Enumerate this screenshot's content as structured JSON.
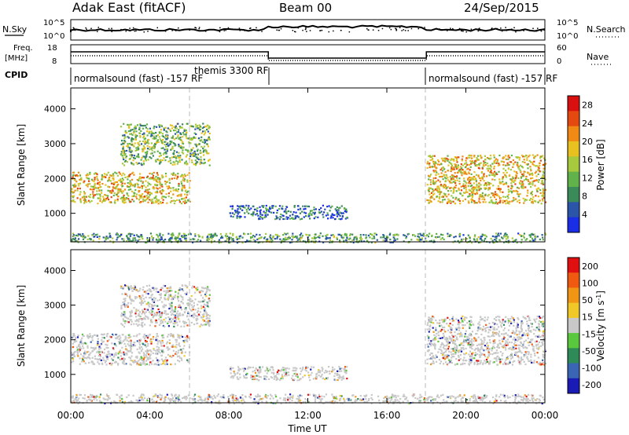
{
  "header": {
    "title": "Adak East (fitACF)",
    "beam": "Beam 00",
    "date": "24/Sep/2015"
  },
  "top_panels": {
    "nsky_label": "N.Sky",
    "nsky_ticks": [
      "10^5",
      "10^0"
    ],
    "nsearch_label": "N.Search",
    "nsearch_ticks": [
      "10^5",
      "10^0"
    ],
    "freq_label_1": "Freq.",
    "freq_label_2": "[MHz]",
    "freq_ticks": [
      "18",
      "8"
    ],
    "nave_label": "Nave",
    "nave_ticks": [
      "60",
      "0"
    ],
    "cpid_label": "CPID",
    "cpid_segments": [
      "normalsound (fast) -157 RF",
      "themis 3300 RF",
      "normalsound (fast) -157 RF"
    ]
  },
  "chart_data": [
    {
      "type": "heatmap",
      "title": "",
      "xlabel": "",
      "ylabel": "Slant Range [km]",
      "x_range_hours": [
        0,
        24
      ],
      "ylim": [
        180,
        4600
      ],
      "y_ticks": [
        "1000",
        "2000",
        "3000",
        "4000"
      ],
      "colorbar": {
        "label": "Power [dB]",
        "ticks": [
          "4",
          "8",
          "12",
          "16",
          "20",
          "24",
          "28"
        ],
        "range": [
          0,
          30
        ],
        "colors": [
          "#1a2ee6",
          "#2a55a8",
          "#3b8a5a",
          "#62b24b",
          "#a6c93d",
          "#e8c020",
          "#f08a14",
          "#e44a10",
          "#d81010"
        ]
      },
      "regions": [
        {
          "name": "early-main-band",
          "t": [
            0,
            6
          ],
          "range_km": [
            1300,
            2200
          ],
          "level_db": 18
        },
        {
          "name": "early-upper-echoes",
          "t": [
            2.5,
            7
          ],
          "range_km": [
            2400,
            3600
          ],
          "level_db": 12
        },
        {
          "name": "midday-band",
          "t": [
            8,
            14
          ],
          "range_km": [
            850,
            1250
          ],
          "level_db": 6
        },
        {
          "name": "late-main-band",
          "t": [
            18,
            24
          ],
          "range_km": [
            1300,
            2700
          ],
          "level_db": 18
        },
        {
          "name": "near-range-clutter",
          "t": [
            0,
            24
          ],
          "range_km": [
            180,
            450
          ],
          "level_db": 10
        }
      ]
    },
    {
      "type": "heatmap",
      "title": "",
      "xlabel": "Time UT",
      "ylabel": "Slant Range [km]",
      "x_range_hours": [
        0,
        24
      ],
      "x_ticks": [
        "00:00",
        "04:00",
        "08:00",
        "12:00",
        "16:00",
        "20:00",
        "00:00"
      ],
      "ylim": [
        180,
        4600
      ],
      "y_ticks": [
        "1000",
        "2000",
        "3000",
        "4000"
      ],
      "colorbar": {
        "label": "Velocity [m s^-1]",
        "ticks": [
          "200",
          "100",
          "50",
          "15",
          "-15",
          "-50",
          "-100",
          "-200"
        ],
        "range": [
          -250,
          250
        ],
        "colors": [
          "#1a1ab4",
          "#3a64b4",
          "#2e8b57",
          "#5ac83c",
          "#c8c8c8",
          "#f0c828",
          "#f09614",
          "#f05a10",
          "#e01010"
        ]
      },
      "regions": [
        {
          "name": "early-main-band",
          "t": [
            0,
            6
          ],
          "range_km": [
            1300,
            2200
          ],
          "velocity": 0
        },
        {
          "name": "early-upper-echoes",
          "t": [
            2.5,
            7
          ],
          "range_km": [
            2400,
            3600
          ],
          "velocity": 0
        },
        {
          "name": "midday-band",
          "t": [
            8,
            14
          ],
          "range_km": [
            850,
            1250
          ],
          "velocity": 0
        },
        {
          "name": "late-main-band",
          "t": [
            18,
            24
          ],
          "range_km": [
            1300,
            2700
          ],
          "velocity": 0
        },
        {
          "name": "near-range-clutter",
          "t": [
            0,
            24
          ],
          "range_km": [
            180,
            450
          ],
          "velocity": 0
        }
      ]
    }
  ]
}
